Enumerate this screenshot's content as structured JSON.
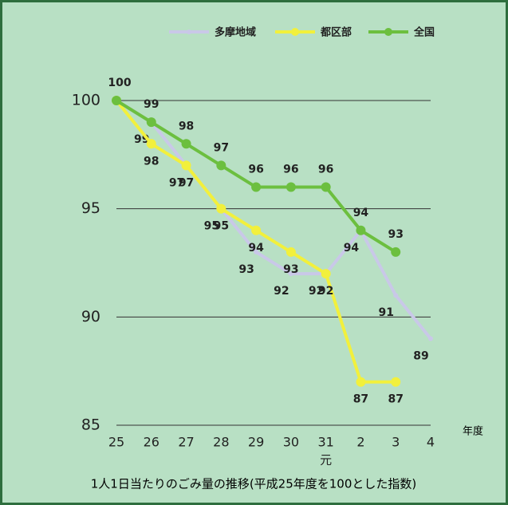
{
  "chart_data": {
    "type": "line",
    "title": "1人1日当たりのごみ量の推移(平成25年度を100とした指数)",
    "x_label": "年度",
    "categories": [
      "25",
      "26",
      "27",
      "28",
      "29",
      "30",
      "31",
      "2",
      "3",
      "4"
    ],
    "category_sublabels": [
      null,
      null,
      null,
      null,
      null,
      null,
      "元",
      null,
      null,
      null
    ],
    "series": [
      {
        "name": "多摩地域",
        "color": "#c9c8e8",
        "values": [
          100,
          99,
          97,
          95,
          93,
          92,
          92,
          94,
          91,
          89
        ],
        "value_labels": [
          null,
          "99",
          "97",
          "95",
          "93",
          "92",
          "92",
          "94",
          "91",
          "89"
        ]
      },
      {
        "name": "都区部",
        "color": "#f2f03c",
        "values": [
          100,
          98,
          97,
          95,
          94,
          93,
          92,
          87,
          87,
          null
        ],
        "value_labels": [
          null,
          "98",
          "97",
          "95",
          "94",
          "93",
          "92",
          "87",
          "87",
          null
        ]
      },
      {
        "name": "全国",
        "color": "#6cbf3f",
        "values": [
          100,
          99,
          98,
          97,
          96,
          96,
          96,
          94,
          93,
          null
        ],
        "value_labels": [
          "100",
          "99",
          "98",
          "97",
          "96",
          "96",
          "96",
          "94",
          "93",
          null
        ]
      }
    ],
    "ylim": [
      85,
      100
    ],
    "yticks": [
      85,
      90,
      95,
      100
    ],
    "grid": true
  }
}
